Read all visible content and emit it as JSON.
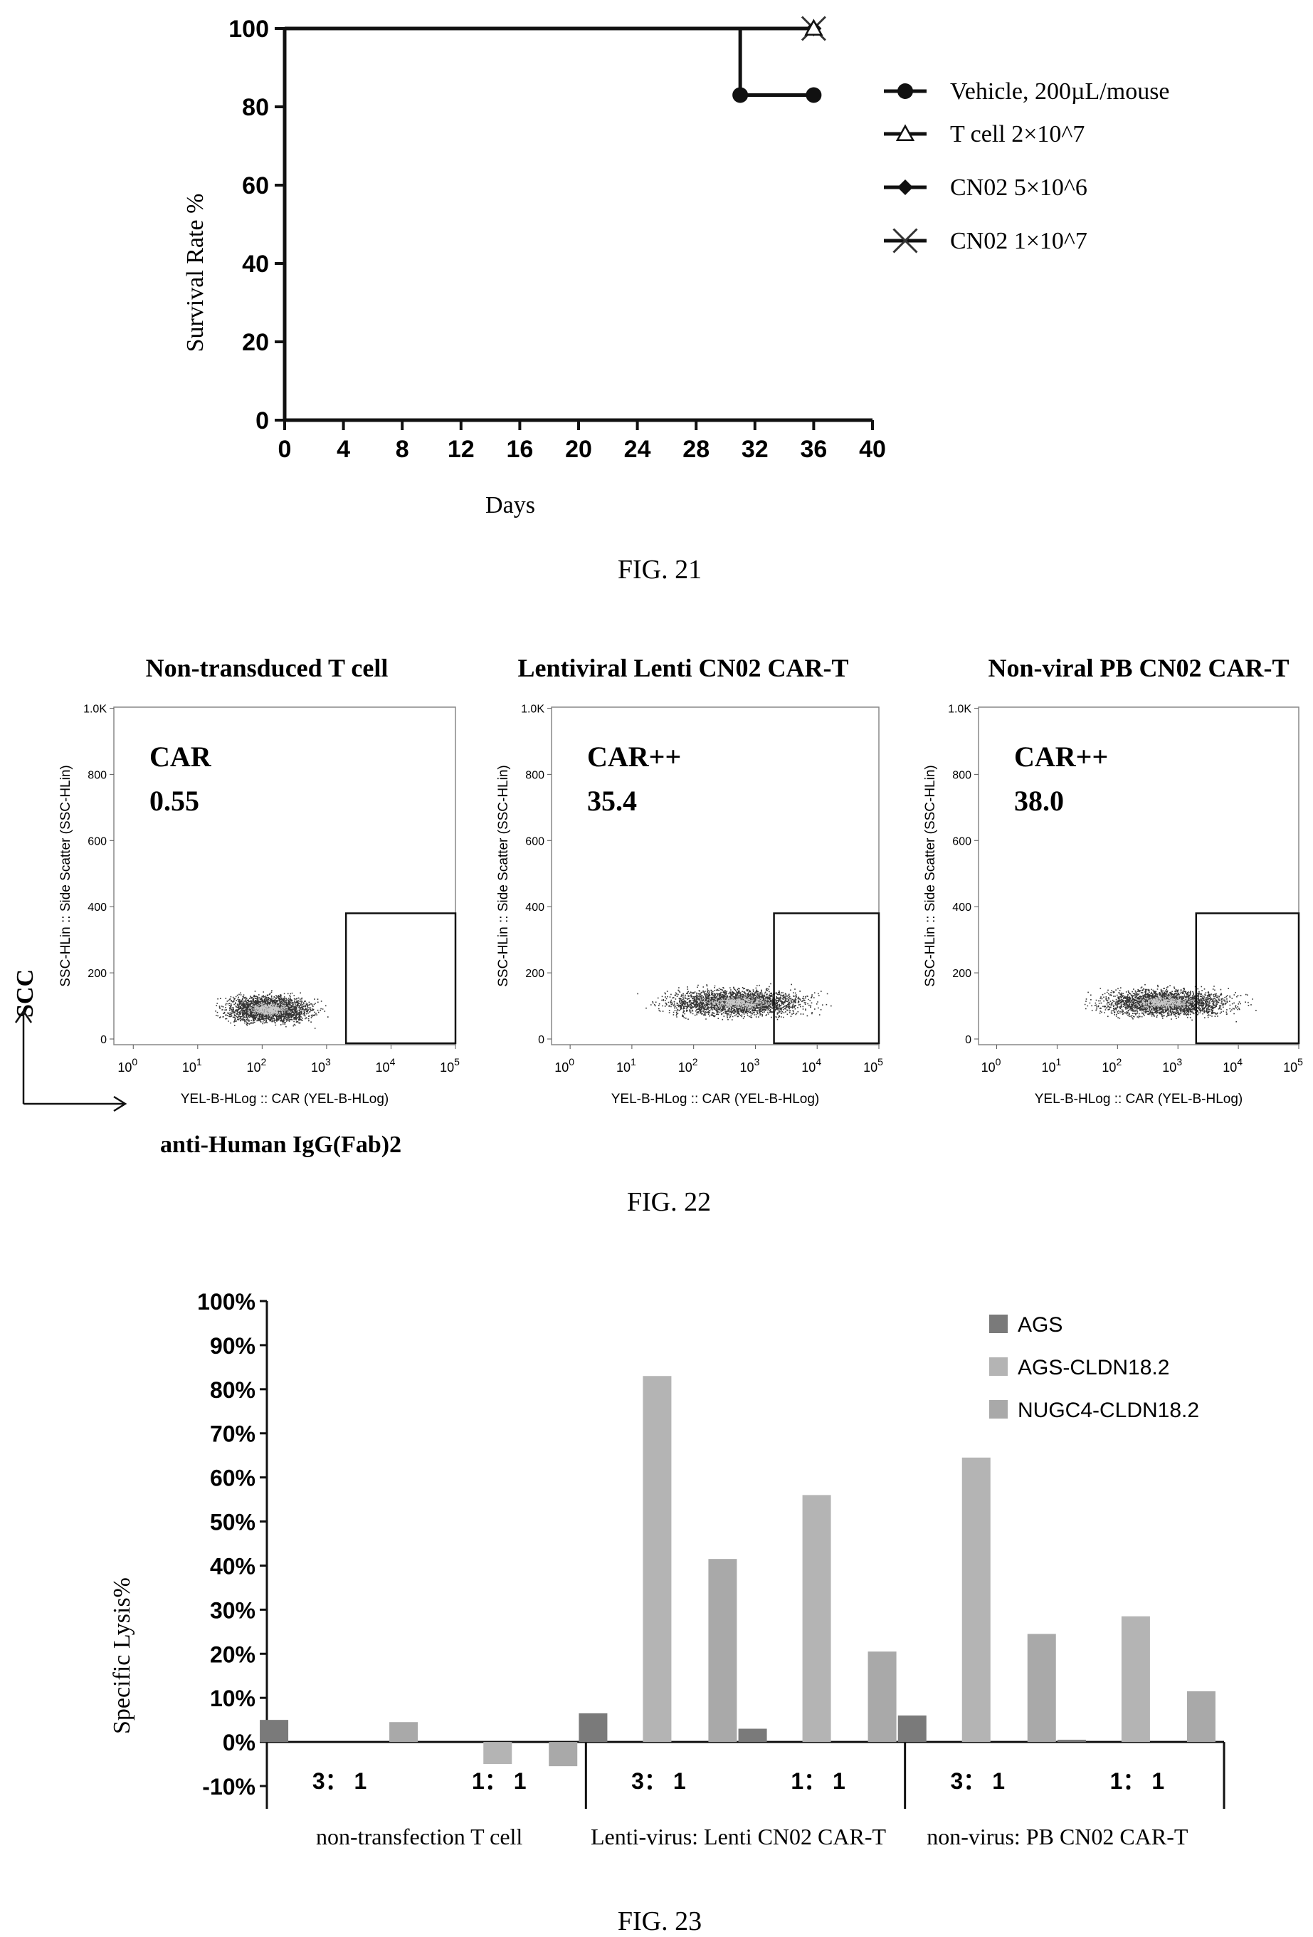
{
  "fig21": {
    "caption": "FIG. 21",
    "chart_data": {
      "type": "line",
      "xlabel": "Days",
      "ylabel": "Survival Rate %",
      "xlim": [
        0,
        40
      ],
      "ylim": [
        0,
        100
      ],
      "xticks": [
        0,
        4,
        8,
        12,
        16,
        20,
        24,
        28,
        32,
        36,
        40
      ],
      "yticks": [
        0,
        20,
        40,
        60,
        80,
        100
      ],
      "legend_position": "right",
      "series": [
        {
          "name": "Vehicle, 200µL/mouse",
          "marker": "circle",
          "x": [
            0,
            31,
            31,
            36
          ],
          "y": [
            100,
            100,
            83,
            83
          ],
          "points": [
            [
              31,
              83
            ],
            [
              36,
              83
            ]
          ]
        },
        {
          "name": "T cell 2×10^7",
          "marker": "triangle",
          "x": [
            0,
            36
          ],
          "y": [
            100,
            100
          ],
          "points": [
            [
              36,
              100
            ]
          ]
        },
        {
          "name": "CN02 5×10^6",
          "marker": "diamond",
          "x": [
            0,
            36
          ],
          "y": [
            100,
            100
          ],
          "points": [
            [
              36,
              100
            ]
          ]
        },
        {
          "name": "CN02 1×10^7",
          "marker": "x",
          "x": [
            0,
            36
          ],
          "y": [
            100,
            100
          ],
          "points": [
            [
              36,
              100
            ]
          ]
        }
      ]
    }
  },
  "fig22": {
    "caption": "FIG. 22",
    "axis_y_label": "SCC",
    "axis_x_label": "anti-Human IgG(Fab)2",
    "chart_data": [
      {
        "type": "scatter",
        "title": "Non-transduced T cell",
        "gate_label": "CAR",
        "gate_value": "0.55",
        "ylabel": "SSC-HLin :: Side Scatter (SSC-HLin)",
        "xlabel": "YEL-B-HLog :: CAR (YEL-B-HLog)",
        "yticks": [
          "0",
          "200",
          "400",
          "600",
          "800",
          "1.0K"
        ],
        "xticks": [
          "10^0",
          "10^1",
          "10^2",
          "10^3",
          "10^4",
          "10^5"
        ],
        "xscale": "log",
        "xlim": [
          0.5,
          100000
        ],
        "ylim": [
          0,
          1000
        ],
        "gate": {
          "x": [
            2000,
            100000
          ],
          "y": [
            0,
            380
          ]
        },
        "cloud": {
          "log_center": 2.1,
          "log_spread": 0.8,
          "log_min": 0.3,
          "log_max": 3.9,
          "y_center": 90,
          "y_spread": 55
        }
      },
      {
        "type": "scatter",
        "title": "Lentiviral Lenti CN02 CAR-T",
        "gate_label": "CAR++",
        "gate_value": "35.4",
        "ylabel": "SSC-HLin :: Side Scatter (SSC-HLin)",
        "xlabel": "YEL-B-HLog :: CAR (YEL-B-HLog)",
        "yticks": [
          "0",
          "200",
          "400",
          "600",
          "800",
          "1.0K"
        ],
        "xticks": [
          "10^0",
          "10^1",
          "10^2",
          "10^3",
          "10^4",
          "10^5"
        ],
        "xscale": "log",
        "xlim": [
          0.5,
          100000
        ],
        "ylim": [
          0,
          1000
        ],
        "gate": {
          "x": [
            2000,
            100000
          ],
          "y": [
            0,
            380
          ]
        },
        "cloud": {
          "log_center": 2.7,
          "log_spread": 1.4,
          "log_min": -0.2,
          "log_max": 5.0,
          "y_center": 110,
          "y_spread": 55
        }
      },
      {
        "type": "scatter",
        "title": "Non-viral PB CN02 CAR-T",
        "gate_label": "CAR++",
        "gate_value": "38.0",
        "ylabel": "SSC-HLin :: Side Scatter (SSC-HLin)",
        "xlabel": "YEL-B-HLog :: CAR (YEL-B-HLog)",
        "yticks": [
          "0",
          "200",
          "400",
          "600",
          "800",
          "1.0K"
        ],
        "xticks": [
          "10^0",
          "10^1",
          "10^2",
          "10^3",
          "10^4",
          "10^5"
        ],
        "xscale": "log",
        "xlim": [
          0.5,
          100000
        ],
        "ylim": [
          0,
          1000
        ],
        "gate": {
          "x": [
            2000,
            100000
          ],
          "y": [
            0,
            380
          ]
        },
        "cloud": {
          "log_center": 2.8,
          "log_spread": 1.3,
          "log_min": 0.4,
          "log_max": 5.0,
          "y_center": 110,
          "y_spread": 55
        }
      }
    ]
  },
  "fig23": {
    "caption": "FIG. 23",
    "chart_data": {
      "type": "bar",
      "ylabel": "Specific Lysis%",
      "ylim": [
        -10,
        100
      ],
      "yticks": [
        "100%",
        "90%",
        "80%",
        "70%",
        "60%",
        "50%",
        "40%",
        "30%",
        "20%",
        "10%",
        "0%",
        "-10%"
      ],
      "ytick_values": [
        100,
        90,
        80,
        70,
        60,
        50,
        40,
        30,
        20,
        10,
        0,
        -10
      ],
      "legend_position": "top-right",
      "groups": [
        "non-transfection T cell",
        "Lenti-virus: Lenti CN02 CAR-T",
        "non-virus: PB CN02 CAR-T"
      ],
      "categories": [
        "3： 1",
        "1： 1",
        "3： 1",
        "1： 1",
        "3： 1",
        "1： 1"
      ],
      "series": [
        {
          "name": "AGS",
          "color": "#7a7a7a",
          "values": [
            5,
            0,
            6.5,
            3,
            6,
            0.5
          ]
        },
        {
          "name": "AGS-CLDN18.2",
          "color": "#b4b4b4",
          "values": [
            0,
            -5,
            83,
            56,
            64.5,
            28.5
          ]
        },
        {
          "name": "NUGC4-CLDN18.2",
          "color": "#a9a9a9",
          "values": [
            4.5,
            -5.5,
            41.5,
            20.5,
            24.5,
            11.5
          ]
        }
      ]
    }
  }
}
